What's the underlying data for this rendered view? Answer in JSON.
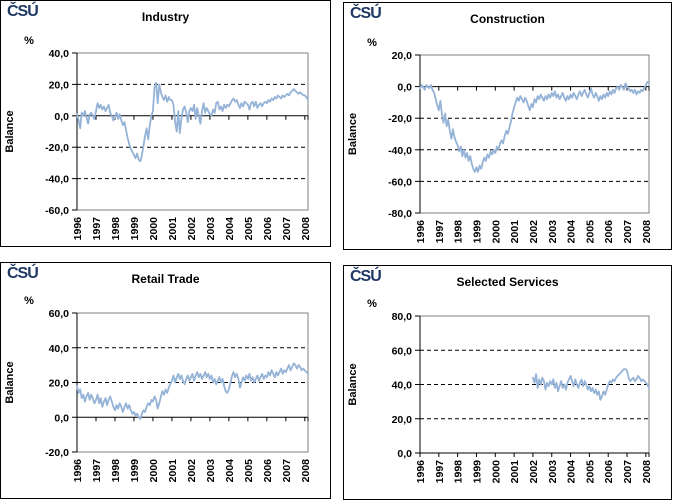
{
  "logo": {
    "text": "ČSÚ"
  },
  "colors": {
    "logo": "#1F3864",
    "line": "#95B3D7",
    "axis": "#000000",
    "grid": "#000000",
    "plot_border": "#808080",
    "panel_border": "#000000",
    "background": "#FFFFFF",
    "text": "#000000"
  },
  "x_axis": {
    "start_year": 1996,
    "total_months": 147,
    "years": [
      "1996",
      "1997",
      "1998",
      "1999",
      "2000",
      "2001",
      "2002",
      "2003",
      "2004",
      "2005",
      "2006",
      "2007",
      "2008"
    ]
  },
  "chart_data": [
    {
      "type": "line",
      "title": "Industry",
      "unit": "%",
      "ylabel": "Balance",
      "ylim": [
        -60,
        40
      ],
      "yticks": [
        40,
        20,
        0,
        -20,
        -40,
        -60
      ],
      "ytick_labels": [
        "40,0",
        "20,0",
        "0,0",
        "-20,0",
        "-40,0",
        "-60,0"
      ],
      "grid": "dashed-horizontal",
      "legend": "none",
      "series_start_year": 1996,
      "values": [
        1,
        -3,
        -8,
        2,
        0,
        3,
        -1,
        -5,
        1,
        2,
        0,
        -2,
        3,
        8,
        5,
        7,
        4,
        6,
        3,
        5,
        7,
        2,
        0,
        -3,
        0,
        2,
        -2,
        1,
        -3,
        -6,
        -4,
        -9,
        -14,
        -18,
        -21,
        -23,
        -25,
        -27,
        -24,
        -28,
        -29,
        -25,
        -19,
        -13,
        -8,
        -15,
        -6,
        0,
        3,
        18,
        21,
        8,
        20,
        15,
        12,
        10,
        13,
        9,
        12,
        10,
        10,
        7,
        -4,
        -10,
        3,
        -11,
        -2,
        4,
        6,
        2,
        -4,
        3,
        5,
        3,
        7,
        -2,
        5,
        0,
        -5,
        3,
        8,
        2,
        5,
        3,
        1,
        0,
        4,
        2,
        8,
        9,
        4,
        6,
        3,
        7,
        5,
        7,
        6,
        8,
        10,
        11,
        9,
        10,
        7,
        5,
        8,
        6,
        9,
        8,
        7,
        4,
        8,
        9,
        6,
        9,
        5,
        7,
        8,
        6,
        8,
        9,
        8,
        10,
        9,
        11,
        10,
        12,
        11,
        13,
        12,
        11,
        13,
        12,
        13,
        14,
        13,
        15,
        16,
        17,
        16,
        15,
        14,
        15,
        14,
        13,
        13,
        12,
        10
      ]
    },
    {
      "type": "line",
      "title": "Construction",
      "unit": "%",
      "ylabel": "Balance",
      "ylim": [
        -80,
        20
      ],
      "yticks": [
        20,
        0,
        -20,
        -40,
        -60,
        -80
      ],
      "ytick_labels": [
        "20,0",
        "0,0",
        "-20,0",
        "-40,0",
        "-60,0",
        "-80,0"
      ],
      "grid": "dashed-horizontal",
      "legend": "none",
      "series_start_year": 1996,
      "values": [
        -1,
        1,
        0,
        -2,
        1,
        0,
        -1,
        1,
        -2,
        -4,
        -8,
        -12,
        -15,
        -9,
        -18,
        -23,
        -17,
        -25,
        -21,
        -28,
        -33,
        -27,
        -32,
        -35,
        -37,
        -41,
        -38,
        -44,
        -40,
        -45,
        -42,
        -47,
        -44,
        -49,
        -52,
        -54,
        -51,
        -54,
        -50,
        -52,
        -48,
        -45,
        -47,
        -43,
        -45,
        -41,
        -43,
        -40,
        -42,
        -38,
        -40,
        -36,
        -34,
        -36,
        -31,
        -28,
        -30,
        -26,
        -22,
        -17,
        -13,
        -10,
        -7,
        -9,
        -6,
        -8,
        -10,
        -7,
        -9,
        -12,
        -15,
        -11,
        -13,
        -8,
        -10,
        -6,
        -8,
        -5,
        -7,
        -9,
        -6,
        -8,
        -5,
        -7,
        -4,
        -6,
        -3,
        -7,
        -5,
        -8,
        -6,
        -4,
        -7,
        -9,
        -6,
        -8,
        -5,
        -7,
        -4,
        -6,
        -8,
        -5,
        -3,
        -6,
        -4,
        -2,
        -5,
        -7,
        -4,
        -1,
        -5,
        -7,
        -4,
        -6,
        -9,
        -6,
        -8,
        -5,
        -7,
        -4,
        -6,
        -3,
        -5,
        -2,
        -4,
        -1,
        0,
        -2,
        1,
        0,
        -2,
        2,
        0,
        -1,
        -3,
        -2,
        -4,
        -2,
        -5,
        -3,
        -4,
        -2,
        -3,
        -1,
        1,
        3,
        2
      ]
    },
    {
      "type": "line",
      "title": "Retail Trade",
      "unit": "%",
      "ylabel": "Balance",
      "ylim": [
        -20,
        60
      ],
      "yticks": [
        60,
        40,
        20,
        0,
        -20
      ],
      "ytick_labels": [
        "60,0",
        "40,0",
        "20,0",
        "0,0",
        "-20,0"
      ],
      "grid": "dashed-horizontal",
      "legend": "none",
      "series_start_year": 1996,
      "values": [
        18,
        14,
        16,
        11,
        13,
        9,
        12,
        14,
        10,
        13,
        11,
        8,
        10,
        13,
        8,
        11,
        6,
        9,
        11,
        7,
        10,
        12,
        9,
        6,
        4,
        7,
        5,
        8,
        6,
        3,
        6,
        8,
        5,
        7,
        4,
        2,
        3,
        1,
        2,
        0,
        -1,
        2,
        4,
        3,
        6,
        8,
        7,
        10,
        9,
        12,
        10,
        5,
        8,
        12,
        15,
        13,
        16,
        14,
        17,
        19,
        21,
        24,
        20,
        23,
        25,
        22,
        24,
        21,
        19,
        22,
        24,
        21,
        23,
        25,
        21,
        24,
        26,
        23,
        25,
        22,
        24,
        26,
        23,
        25,
        22,
        24,
        20,
        22,
        19,
        21,
        23,
        20,
        22,
        18,
        15,
        14,
        16,
        20,
        24,
        26,
        23,
        25,
        22,
        17,
        20,
        23,
        21,
        24,
        22,
        25,
        21,
        23,
        20,
        22,
        24,
        21,
        23,
        25,
        22,
        24,
        23,
        26,
        24,
        27,
        25,
        23,
        26,
        24,
        26,
        28,
        25,
        27,
        26,
        28,
        30,
        27,
        29,
        31,
        30,
        28,
        30,
        29,
        27,
        28,
        27,
        26,
        25
      ]
    },
    {
      "type": "line",
      "title": "Selected Services",
      "unit": "%",
      "ylabel": "Balance",
      "ylim": [
        0,
        80
      ],
      "yticks": [
        80,
        60,
        40,
        20,
        0
      ],
      "ytick_labels": [
        "80,0",
        "60,0",
        "40,0",
        "20,0",
        "0,0"
      ],
      "grid": "dashed-horizontal",
      "legend": "none",
      "series_start_year": 2002,
      "values": [
        44,
        41,
        46,
        38,
        43,
        40,
        44,
        42,
        37,
        41,
        39,
        42,
        40,
        43,
        38,
        41,
        36,
        39,
        42,
        38,
        40,
        37,
        41,
        43,
        45,
        42,
        39,
        43,
        40,
        38,
        41,
        43,
        39,
        42,
        40,
        37,
        39,
        36,
        38,
        35,
        37,
        34,
        36,
        31,
        33,
        36,
        34,
        37,
        40,
        42,
        41,
        43,
        42,
        44,
        45,
        46,
        47,
        48,
        49,
        49,
        48,
        44,
        42,
        43,
        44,
        42,
        43,
        45,
        44,
        42,
        43,
        42,
        41,
        40,
        38
      ]
    }
  ]
}
